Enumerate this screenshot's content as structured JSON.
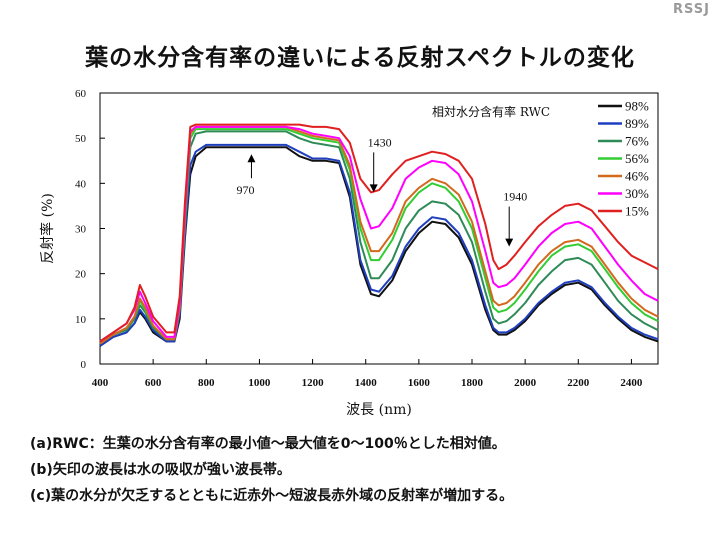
{
  "header": {
    "brand": "RSSJ",
    "title": "葉の水分含有率の違いによる反射スペクトルの変化"
  },
  "chart_data": {
    "type": "line",
    "xlabel": "波長 (nm)",
    "ylabel": "反射率 (%)",
    "xlim": [
      400,
      2500
    ],
    "ylim": [
      0,
      60
    ],
    "xticks": [
      400,
      600,
      800,
      1000,
      1200,
      1400,
      1600,
      1800,
      2000,
      2200,
      2400
    ],
    "yticks": [
      0,
      10,
      20,
      30,
      40,
      50,
      60
    ],
    "legend_title": "相対水分含有率 RWC",
    "legend_position": "top-right",
    "x": [
      400,
      450,
      500,
      530,
      550,
      570,
      600,
      650,
      680,
      700,
      720,
      740,
      760,
      800,
      900,
      1000,
      1100,
      1150,
      1200,
      1250,
      1300,
      1340,
      1380,
      1420,
      1450,
      1500,
      1550,
      1600,
      1650,
      1700,
      1750,
      1800,
      1850,
      1880,
      1900,
      1930,
      1960,
      2000,
      2050,
      2100,
      2150,
      2200,
      2250,
      2300,
      2350,
      2400,
      2450,
      2500
    ],
    "series": [
      {
        "name": "98%",
        "color": "#111111",
        "values": [
          4,
          6,
          7,
          9,
          11.5,
          10,
          7,
          5,
          5,
          10,
          28,
          42,
          46,
          48,
          48,
          48,
          48,
          46,
          45,
          45,
          44.5,
          37,
          22,
          15.5,
          15,
          18.5,
          25,
          29,
          31.5,
          31,
          28,
          22,
          12,
          7.5,
          6.5,
          6.5,
          7.5,
          9.5,
          13,
          15.5,
          17.5,
          18,
          16.5,
          13,
          10,
          7.5,
          6,
          5
        ]
      },
      {
        "name": "89%",
        "color": "#1f3fbf",
        "values": [
          4,
          6,
          7,
          9,
          12,
          10.5,
          7.5,
          5,
          5,
          11,
          29,
          44,
          47,
          48.5,
          48.5,
          48.5,
          48.5,
          47,
          45.5,
          45.5,
          45,
          38,
          23,
          16.5,
          16,
          19.5,
          26,
          30,
          32.5,
          32,
          29,
          23,
          13,
          8,
          7,
          7,
          8,
          10,
          13.5,
          16,
          18,
          18.5,
          17,
          13.5,
          10.5,
          8,
          6.5,
          5.5
        ]
      },
      {
        "name": "76%",
        "color": "#2e8b57",
        "values": [
          4.5,
          6.5,
          7.5,
          10,
          13,
          11.5,
          8,
          5.5,
          5.5,
          12,
          31,
          48,
          51,
          51.5,
          51.5,
          51.5,
          51.5,
          50,
          49,
          48.5,
          48,
          41,
          27,
          19,
          19,
          23,
          30,
          34,
          36,
          35.5,
          33,
          27,
          16,
          10,
          9,
          9.5,
          11,
          13.5,
          17.5,
          20.5,
          23,
          23.5,
          22,
          18,
          14,
          11,
          9,
          7.5
        ]
      },
      {
        "name": "56%",
        "color": "#33cc33",
        "values": [
          4.5,
          6.5,
          8,
          10.5,
          14,
          12,
          8.5,
          5.5,
          5.5,
          12.5,
          32,
          50,
          52,
          52,
          52,
          52,
          52,
          51,
          50,
          49.5,
          49,
          43,
          30,
          23,
          23,
          27.5,
          34.5,
          38,
          40,
          39,
          36,
          30,
          19,
          12.5,
          11.5,
          12,
          13.5,
          16.5,
          20.5,
          24,
          26,
          26.5,
          25,
          21,
          17,
          13.5,
          11,
          9.5
        ]
      },
      {
        "name": "46%",
        "color": "#d2691e",
        "values": [
          4.5,
          6.5,
          8,
          10.5,
          14.5,
          12.5,
          8.5,
          5.5,
          5.5,
          12.5,
          33,
          51,
          52.5,
          52.5,
          52.5,
          52.5,
          52.5,
          51.5,
          50.5,
          50,
          49.5,
          44,
          31.5,
          25,
          25,
          29,
          36,
          39,
          41,
          40,
          37.5,
          31.5,
          20.5,
          14,
          13,
          13.5,
          15,
          18,
          22,
          25,
          27,
          27.5,
          26,
          22,
          18,
          14.5,
          12,
          10.5
        ]
      },
      {
        "name": "30%",
        "color": "#ff00ff",
        "values": [
          5,
          7,
          9,
          12,
          16,
          13.5,
          9.5,
          6,
          6,
          13.5,
          34,
          51.5,
          52.5,
          52.5,
          52.5,
          52.5,
          52.5,
          52,
          51,
          50.5,
          50,
          46,
          36.5,
          30,
          30.5,
          34.5,
          41,
          43.5,
          45,
          44.5,
          42,
          36,
          25,
          18,
          17,
          17.5,
          19,
          22,
          26,
          29,
          31,
          31.5,
          30,
          26,
          22,
          18.5,
          15.5,
          14
        ]
      },
      {
        "name": "15%",
        "color": "#e02020",
        "values": [
          5,
          7,
          9,
          12.5,
          17.5,
          15,
          10.5,
          7,
          7,
          15,
          36,
          52.5,
          53,
          53,
          53,
          53,
          53,
          53,
          52.5,
          52.5,
          52,
          49,
          41,
          38,
          38.5,
          42,
          45,
          46,
          47,
          46.5,
          45,
          41,
          31,
          23,
          21,
          22,
          24,
          27,
          30.5,
          33,
          35,
          35.5,
          34,
          30.5,
          27,
          24,
          22.5,
          21
        ]
      }
    ],
    "annotations": [
      {
        "text": "1430",
        "x": 1430,
        "y": 38
      },
      {
        "text": "1940",
        "x": 1940,
        "y": 26
      },
      {
        "text": "970",
        "x": 970,
        "y": 46
      }
    ]
  },
  "notes": [
    "(a)RWC：生葉の水分含有率の最小値～最大値を0～100％とした相対値。",
    "(b)矢印の波長は水の吸収が強い波長帯。",
    "(c)葉の水分が欠乏するとともに近赤外～短波長赤外域の反射率が増加する。"
  ]
}
